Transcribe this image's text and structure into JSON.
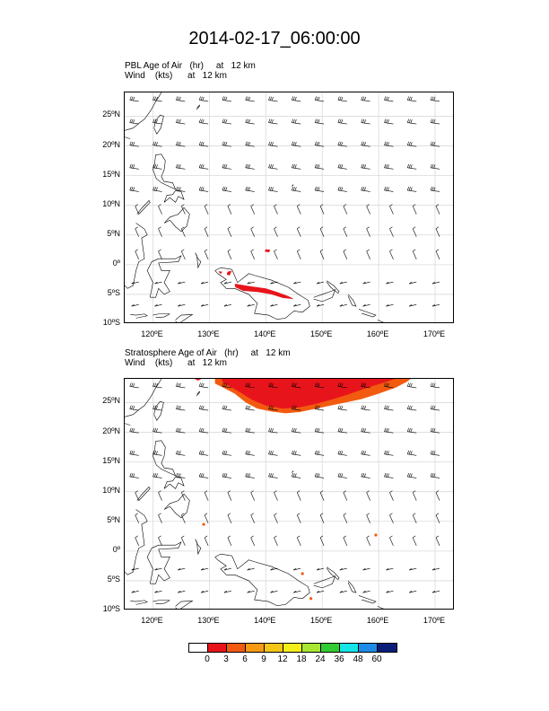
{
  "title": "2014-02-17_06:00:00",
  "panels": [
    {
      "field_line": "PBL Age of Air   (hr)     at   12 km",
      "wind_line": "Wind    (kts)      at   12 km"
    },
    {
      "field_line": "Stratosphere Age of Air   (hr)     at   12 km",
      "wind_line": "Wind    (kts)      at   12 km"
    }
  ],
  "lat_ticks": [
    "25ºN",
    "20ºN",
    "15ºN",
    "10ºN",
    "5ºN",
    "0º",
    "5ºS",
    "10ºS"
  ],
  "lon_ticks": [
    "120ºE",
    "130ºE",
    "140ºE",
    "150ºE",
    "160ºE",
    "170ºE"
  ],
  "colorbar": {
    "labels": [
      "0",
      "3",
      "6",
      "9",
      "12",
      "18",
      "24",
      "36",
      "48",
      "60"
    ],
    "colors": [
      "#ffffff",
      "#e8141c",
      "#f25a0f",
      "#f59a12",
      "#f5c515",
      "#f5ee1a",
      "#a8e632",
      "#32cc32",
      "#14e6e6",
      "#1e8ce6",
      "#0a1e78"
    ]
  }
}
